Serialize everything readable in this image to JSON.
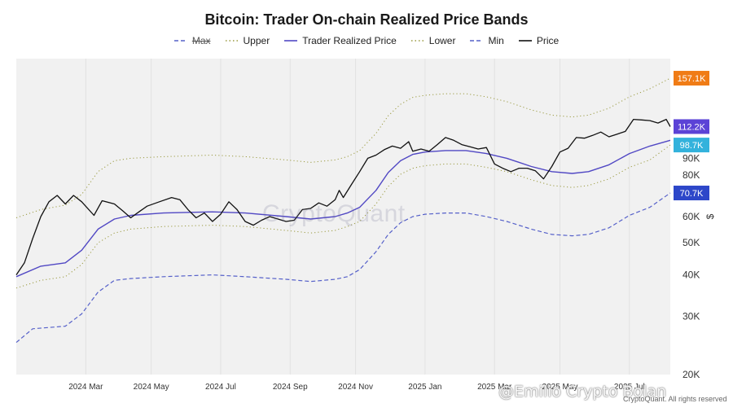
{
  "chart_data": {
    "type": "line",
    "title": "Bitcoin: Trader On-chain Realized Price Bands",
    "ylabel": "$",
    "yscale": "log",
    "ylim": [
      20000,
      180000
    ],
    "y_ticks": [
      {
        "v": 20000,
        "label": "20K"
      },
      {
        "v": 30000,
        "label": "30K"
      },
      {
        "v": 40000,
        "label": "40K"
      },
      {
        "v": 50000,
        "label": "50K"
      },
      {
        "v": 60000,
        "label": "60K"
      },
      {
        "v": 80000,
        "label": "80K"
      },
      {
        "v": 90000,
        "label": "90K"
      }
    ],
    "x_ticks": [
      {
        "v": 2024.17,
        "label": "2024 Mar"
      },
      {
        "v": 2024.33,
        "label": "2024 May"
      },
      {
        "v": 2024.5,
        "label": "2024 Jul"
      },
      {
        "v": 2024.67,
        "label": "2024 Sep"
      },
      {
        "v": 2024.83,
        "label": "2024 Nov"
      },
      {
        "v": 2025.0,
        "label": "2025 Jan"
      },
      {
        "v": 2025.17,
        "label": "2025 Mar"
      },
      {
        "v": 2025.33,
        "label": "2025 May"
      },
      {
        "v": 2025.5,
        "label": "2025 Jul"
      }
    ],
    "xlim": [
      2024.0,
      2025.6
    ],
    "value_tags": [
      {
        "label": "157.1K",
        "value": 157100,
        "color": "#f07c16"
      },
      {
        "label": "112.2K",
        "value": 112200,
        "color": "#5b43d6"
      },
      {
        "label": "98.7K",
        "value": 98700,
        "color": "#33b2dc"
      },
      {
        "label": "70.7K",
        "value": 70700,
        "color": "#2d47c9"
      }
    ],
    "legend": [
      "Max",
      "Upper",
      "Trader Realized Price",
      "Lower",
      "Min",
      "Price"
    ],
    "series": [
      {
        "name": "Price",
        "color": "#111111",
        "style": "solid",
        "width": 1.3,
        "points": [
          [
            2024.0,
            40000
          ],
          [
            2024.02,
            43500
          ],
          [
            2024.04,
            51500
          ],
          [
            2024.06,
            60000
          ],
          [
            2024.08,
            66500
          ],
          [
            2024.1,
            69500
          ],
          [
            2024.12,
            65500
          ],
          [
            2024.14,
            69500
          ],
          [
            2024.16,
            66500
          ],
          [
            2024.19,
            60500
          ],
          [
            2024.21,
            67000
          ],
          [
            2024.24,
            65500
          ],
          [
            2024.26,
            62500
          ],
          [
            2024.28,
            59500
          ],
          [
            2024.3,
            62000
          ],
          [
            2024.32,
            64500
          ],
          [
            2024.35,
            66500
          ],
          [
            2024.38,
            68500
          ],
          [
            2024.4,
            67500
          ],
          [
            2024.42,
            63000
          ],
          [
            2024.44,
            59500
          ],
          [
            2024.46,
            61500
          ],
          [
            2024.48,
            58000
          ],
          [
            2024.5,
            61000
          ],
          [
            2024.52,
            66500
          ],
          [
            2024.54,
            63000
          ],
          [
            2024.56,
            58000
          ],
          [
            2024.58,
            56500
          ],
          [
            2024.6,
            58500
          ],
          [
            2024.62,
            60000
          ],
          [
            2024.64,
            59000
          ],
          [
            2024.66,
            58000
          ],
          [
            2024.68,
            58500
          ],
          [
            2024.7,
            63000
          ],
          [
            2024.72,
            63500
          ],
          [
            2024.74,
            66000
          ],
          [
            2024.76,
            64500
          ],
          [
            2024.78,
            67500
          ],
          [
            2024.79,
            72000
          ],
          [
            2024.8,
            68500
          ],
          [
            2024.82,
            75000
          ],
          [
            2024.84,
            82000
          ],
          [
            2024.86,
            90000
          ],
          [
            2024.88,
            92000
          ],
          [
            2024.9,
            95500
          ],
          [
            2024.92,
            98000
          ],
          [
            2024.94,
            96500
          ],
          [
            2024.96,
            101000
          ],
          [
            2024.97,
            94500
          ],
          [
            2024.99,
            96000
          ],
          [
            2025.01,
            94500
          ],
          [
            2025.03,
            99000
          ],
          [
            2025.05,
            104000
          ],
          [
            2025.07,
            102000
          ],
          [
            2025.09,
            99000
          ],
          [
            2025.11,
            97500
          ],
          [
            2025.13,
            96000
          ],
          [
            2025.15,
            97000
          ],
          [
            2025.17,
            86500
          ],
          [
            2025.19,
            84000
          ],
          [
            2025.21,
            82000
          ],
          [
            2025.23,
            84000
          ],
          [
            2025.25,
            84000
          ],
          [
            2025.27,
            82500
          ],
          [
            2025.29,
            78000
          ],
          [
            2025.31,
            85000
          ],
          [
            2025.33,
            94000
          ],
          [
            2025.35,
            96500
          ],
          [
            2025.37,
            104000
          ],
          [
            2025.39,
            103500
          ],
          [
            2025.41,
            105500
          ],
          [
            2025.43,
            108000
          ],
          [
            2025.45,
            104500
          ],
          [
            2025.47,
            106500
          ],
          [
            2025.49,
            108500
          ],
          [
            2025.51,
            118000
          ],
          [
            2025.53,
            117500
          ],
          [
            2025.55,
            117000
          ],
          [
            2025.57,
            115000
          ],
          [
            2025.59,
            118000
          ],
          [
            2025.6,
            112200
          ]
        ]
      },
      {
        "name": "Trader Realized Price",
        "color": "#5148c4",
        "style": "solid",
        "width": 1.4,
        "points": [
          [
            2024.0,
            39500
          ],
          [
            2024.06,
            42500
          ],
          [
            2024.12,
            43500
          ],
          [
            2024.16,
            47500
          ],
          [
            2024.2,
            55000
          ],
          [
            2024.24,
            59000
          ],
          [
            2024.28,
            60500
          ],
          [
            2024.36,
            61500
          ],
          [
            2024.48,
            62000
          ],
          [
            2024.56,
            61500
          ],
          [
            2024.66,
            60000
          ],
          [
            2024.72,
            59000
          ],
          [
            2024.78,
            60000
          ],
          [
            2024.81,
            61500
          ],
          [
            2024.84,
            64000
          ],
          [
            2024.88,
            72000
          ],
          [
            2024.91,
            81500
          ],
          [
            2024.94,
            88500
          ],
          [
            2024.97,
            92500
          ],
          [
            2025.0,
            94000
          ],
          [
            2025.05,
            95000
          ],
          [
            2025.1,
            95000
          ],
          [
            2025.15,
            93000
          ],
          [
            2025.2,
            90000
          ],
          [
            2025.26,
            85000
          ],
          [
            2025.31,
            82000
          ],
          [
            2025.36,
            81000
          ],
          [
            2025.4,
            82000
          ],
          [
            2025.45,
            86000
          ],
          [
            2025.5,
            93000
          ],
          [
            2025.55,
            98000
          ],
          [
            2025.6,
            102000
          ]
        ]
      },
      {
        "name": "Upper",
        "color": "#9a9a40",
        "style": "dot",
        "width": 1,
        "points": [
          [
            2024.0,
            59500
          ],
          [
            2024.06,
            63000
          ],
          [
            2024.12,
            65000
          ],
          [
            2024.16,
            70000
          ],
          [
            2024.2,
            82000
          ],
          [
            2024.24,
            88500
          ],
          [
            2024.28,
            90000
          ],
          [
            2024.36,
            91000
          ],
          [
            2024.48,
            92000
          ],
          [
            2024.56,
            91000
          ],
          [
            2024.66,
            89000
          ],
          [
            2024.72,
            87500
          ],
          [
            2024.78,
            89000
          ],
          [
            2024.81,
            91000
          ],
          [
            2024.84,
            95000
          ],
          [
            2024.88,
            107000
          ],
          [
            2024.91,
            121000
          ],
          [
            2024.94,
            131000
          ],
          [
            2024.97,
            137500
          ],
          [
            2025.0,
            139500
          ],
          [
            2025.05,
            141000
          ],
          [
            2025.1,
            141000
          ],
          [
            2025.15,
            138000
          ],
          [
            2025.2,
            133500
          ],
          [
            2025.26,
            126000
          ],
          [
            2025.31,
            121500
          ],
          [
            2025.36,
            120000
          ],
          [
            2025.4,
            121500
          ],
          [
            2025.45,
            127500
          ],
          [
            2025.5,
            138000
          ],
          [
            2025.55,
            146000
          ],
          [
            2025.6,
            157100
          ]
        ]
      },
      {
        "name": "Lower",
        "color": "#9a9a40",
        "style": "dot",
        "width": 1,
        "points": [
          [
            2024.0,
            36500
          ],
          [
            2024.06,
            38500
          ],
          [
            2024.12,
            39500
          ],
          [
            2024.16,
            43000
          ],
          [
            2024.2,
            50000
          ],
          [
            2024.24,
            53500
          ],
          [
            2024.28,
            55000
          ],
          [
            2024.36,
            56000
          ],
          [
            2024.48,
            56500
          ],
          [
            2024.56,
            56000
          ],
          [
            2024.66,
            54500
          ],
          [
            2024.72,
            53500
          ],
          [
            2024.78,
            54500
          ],
          [
            2024.81,
            56000
          ],
          [
            2024.84,
            58000
          ],
          [
            2024.88,
            65500
          ],
          [
            2024.91,
            74000
          ],
          [
            2024.94,
            80500
          ],
          [
            2024.97,
            84000
          ],
          [
            2025.0,
            85500
          ],
          [
            2025.05,
            86500
          ],
          [
            2025.1,
            86500
          ],
          [
            2025.15,
            84500
          ],
          [
            2025.2,
            82000
          ],
          [
            2025.26,
            77500
          ],
          [
            2025.31,
            74500
          ],
          [
            2025.36,
            73500
          ],
          [
            2025.4,
            74500
          ],
          [
            2025.45,
            78000
          ],
          [
            2025.5,
            84500
          ],
          [
            2025.55,
            89000
          ],
          [
            2025.6,
            98700
          ]
        ]
      },
      {
        "name": "Min",
        "color": "#5560c9",
        "style": "dash",
        "width": 1.2,
        "points": [
          [
            2024.0,
            25000
          ],
          [
            2024.04,
            27500
          ],
          [
            2024.12,
            28000
          ],
          [
            2024.16,
            30500
          ],
          [
            2024.2,
            35500
          ],
          [
            2024.24,
            38500
          ],
          [
            2024.28,
            39000
          ],
          [
            2024.36,
            39500
          ],
          [
            2024.48,
            40000
          ],
          [
            2024.56,
            39500
          ],
          [
            2024.66,
            38800
          ],
          [
            2024.72,
            38200
          ],
          [
            2024.78,
            38800
          ],
          [
            2024.81,
            39500
          ],
          [
            2024.84,
            41500
          ],
          [
            2024.88,
            47000
          ],
          [
            2024.91,
            53000
          ],
          [
            2024.94,
            57500
          ],
          [
            2024.97,
            60000
          ],
          [
            2025.0,
            61000
          ],
          [
            2025.05,
            61500
          ],
          [
            2025.1,
            61500
          ],
          [
            2025.15,
            60000
          ],
          [
            2025.2,
            58000
          ],
          [
            2025.26,
            55000
          ],
          [
            2025.31,
            53000
          ],
          [
            2025.36,
            52500
          ],
          [
            2025.4,
            53000
          ],
          [
            2025.45,
            55500
          ],
          [
            2025.5,
            60500
          ],
          [
            2025.55,
            64000
          ],
          [
            2025.6,
            70700
          ]
        ]
      }
    ]
  },
  "watermark": "CryptoQuant",
  "overlay_watermark": "@Emilio Crypto Bolan",
  "credit": "CryptoQuant. All rights reserved"
}
